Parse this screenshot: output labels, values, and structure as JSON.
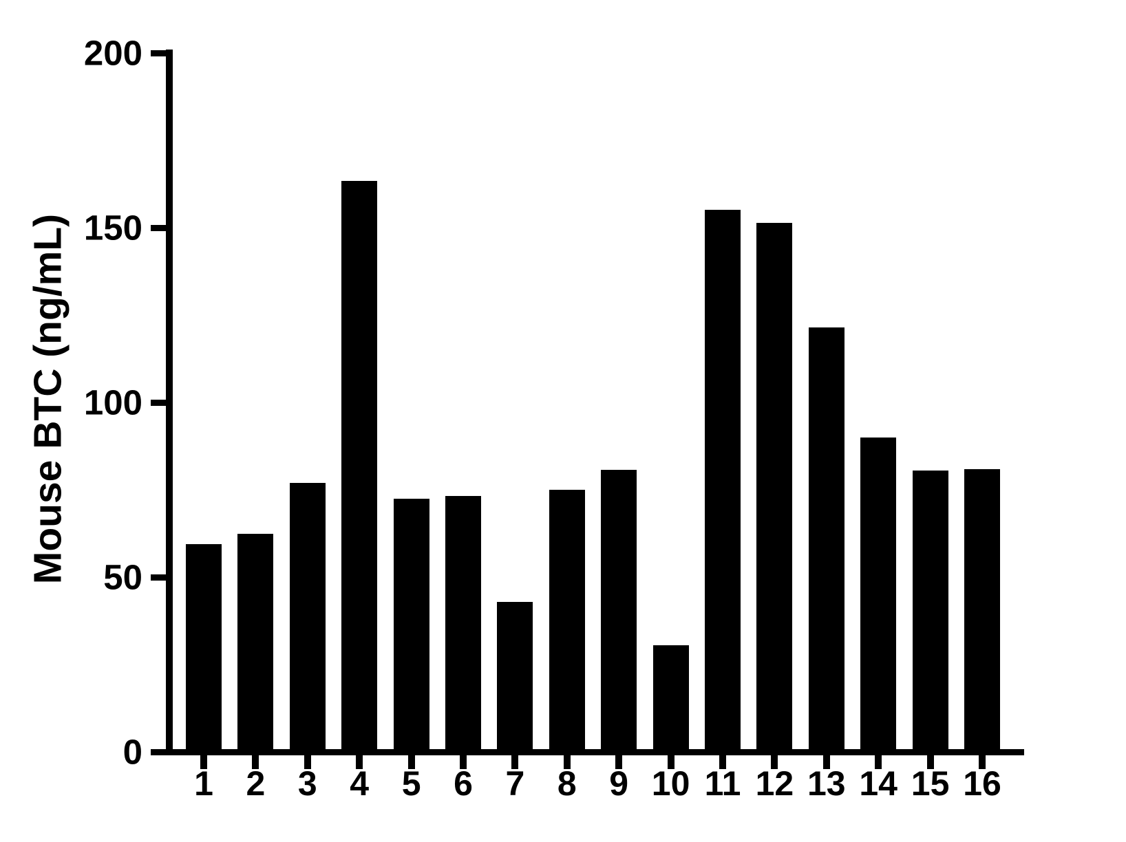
{
  "chart_data": {
    "type": "bar",
    "title": "",
    "xlabel": "",
    "ylabel": "Mouse BTC (ng/mL)",
    "categories": [
      "1",
      "2",
      "3",
      "4",
      "5",
      "6",
      "7",
      "8",
      "9",
      "10",
      "11",
      "12",
      "13",
      "14",
      "15",
      "16"
    ],
    "values": [
      59.4,
      62.4,
      77.0,
      163.4,
      72.4,
      73.2,
      42.9,
      75.0,
      80.7,
      30.5,
      155.1,
      151.4,
      121.5,
      90.0,
      80.5,
      80.9
    ],
    "ylim": [
      0,
      200
    ],
    "yticks": [
      0,
      50,
      100,
      150,
      200
    ],
    "grid": false,
    "legend": false,
    "bar_color": "#000000",
    "axis_color": "#000000",
    "background_color": "#ffffff"
  }
}
